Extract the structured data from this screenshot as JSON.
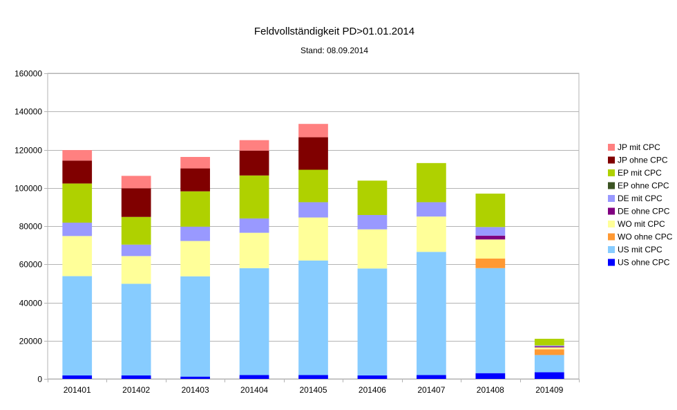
{
  "chart_data": {
    "type": "bar",
    "stacked": true,
    "title": "Feldvollständigkeit PD>01.01.2014",
    "subtitle": "Stand: 08.09.2014",
    "xlabel": "",
    "ylabel": "",
    "ylim": [
      0,
      160000
    ],
    "yticks": [
      0,
      20000,
      40000,
      60000,
      80000,
      100000,
      120000,
      140000,
      160000
    ],
    "grid": true,
    "legend_position": "right",
    "categories": [
      "201401",
      "201402",
      "201403",
      "201404",
      "201405",
      "201406",
      "201407",
      "201408",
      "201409"
    ],
    "series": [
      {
        "name": "US ohne CPC",
        "color": "#0000ff",
        "values": [
          1800,
          1800,
          1200,
          2000,
          2000,
          1800,
          2000,
          3000,
          3500
        ]
      },
      {
        "name": "US mit CPC",
        "color": "#87ccff",
        "values": [
          52000,
          48000,
          52500,
          56000,
          60000,
          56000,
          64500,
          55000,
          9000
        ]
      },
      {
        "name": "WO ohne CPC",
        "color": "#ff9933",
        "values": [
          0,
          0,
          0,
          0,
          0,
          0,
          0,
          5000,
          3000
        ]
      },
      {
        "name": "WO mit CPC",
        "color": "#ffff99",
        "values": [
          21000,
          14500,
          18500,
          18500,
          22500,
          20500,
          18500,
          10000,
          1000
        ]
      },
      {
        "name": "DE ohne CPC",
        "color": "#800080",
        "values": [
          0,
          0,
          0,
          0,
          0,
          0,
          0,
          2000,
          500
        ]
      },
      {
        "name": "DE mit CPC",
        "color": "#9999ff",
        "values": [
          7000,
          6000,
          7500,
          7500,
          8000,
          7500,
          7500,
          4500,
          500
        ]
      },
      {
        "name": "EP ohne CPC",
        "color": "#3b5323",
        "values": [
          0,
          0,
          0,
          0,
          0,
          0,
          0,
          0,
          0
        ]
      },
      {
        "name": "EP mit CPC",
        "color": "#afd100",
        "values": [
          20500,
          14500,
          18500,
          22500,
          17000,
          18000,
          20500,
          17500,
          3500
        ]
      },
      {
        "name": "JP ohne CPC",
        "color": "#800000",
        "values": [
          12000,
          15000,
          12000,
          13000,
          17000,
          0,
          0,
          0,
          0
        ]
      },
      {
        "name": "JP mit CPC",
        "color": "#ff8080",
        "values": [
          5500,
          6500,
          6000,
          5500,
          7000,
          0,
          0,
          0,
          0
        ]
      }
    ]
  }
}
